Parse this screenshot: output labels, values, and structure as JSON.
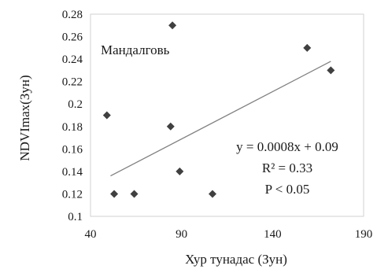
{
  "chart_data": {
    "type": "scatter",
    "title": "",
    "annotation_title": "Мандалговь",
    "xlabel": "Хур тунадас (Зун)",
    "ylabel": "NDVImax(Зун)",
    "xlim": [
      40,
      190
    ],
    "ylim": [
      0.1,
      0.28
    ],
    "xticks": [
      40,
      90,
      140,
      190
    ],
    "xtick_labels": [
      "40",
      "90",
      "140",
      "190"
    ],
    "yticks": [
      0.1,
      0.12,
      0.14,
      0.16,
      0.18,
      0.2,
      0.22,
      0.24,
      0.26,
      0.28
    ],
    "ytick_labels": [
      "0.1",
      "0.12",
      "0.14",
      "0.16",
      "0.18",
      "0.2",
      "0.22",
      "0.24",
      "0.26",
      "0.28"
    ],
    "grid": false,
    "legend": "none",
    "marker": "diamond",
    "marker_color": "#404040",
    "trendline_color": "#808080",
    "points": [
      {
        "x": 49,
        "y": 0.19
      },
      {
        "x": 53,
        "y": 0.12
      },
      {
        "x": 64,
        "y": 0.12
      },
      {
        "x": 84,
        "y": 0.18
      },
      {
        "x": 85,
        "y": 0.27
      },
      {
        "x": 89,
        "y": 0.14
      },
      {
        "x": 107,
        "y": 0.12
      },
      {
        "x": 159,
        "y": 0.25
      },
      {
        "x": 172,
        "y": 0.23
      }
    ],
    "trendline": {
      "x_start": 51,
      "y_start": 0.136,
      "x_end": 172,
      "y_end": 0.238
    },
    "equation": "y = 0.0008x + 0.09",
    "r_squared": "R² = 0.33",
    "p_value": "P < 0.05"
  }
}
